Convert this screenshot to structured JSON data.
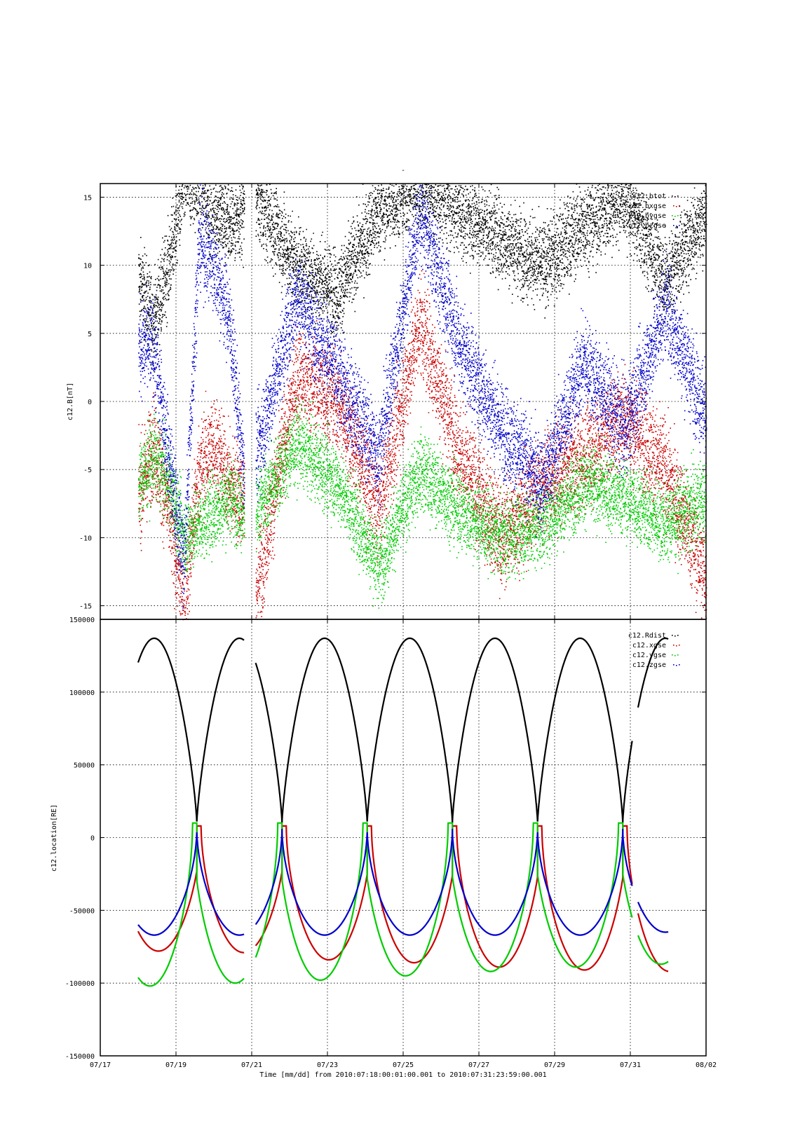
{
  "figure": {
    "top_marker": "-",
    "xlabel": "Time [mm/dd]  from 2010:07:18:00:01:00.001  to  2010:07:31:23:59:00.001",
    "x_tick_labels": [
      "07/17",
      "07/19",
      "07/21",
      "07/23",
      "07/25",
      "07/27",
      "07/29",
      "07/31",
      "08/02"
    ]
  },
  "chart_data": [
    {
      "type": "scatter",
      "ylabel": "c12.B[nT]",
      "xlim_days": [
        0,
        16
      ],
      "x_origin_date": "07/17",
      "ylim": [
        -16,
        16
      ],
      "y_ticks": [
        15,
        10,
        5,
        0,
        -5,
        -10,
        -15
      ],
      "grid": true,
      "legend": "top-right",
      "series": [
        {
          "name": "c12.btot",
          "color": "#000000",
          "note": "dense noisy scatter"
        },
        {
          "name": "c12.bxgse",
          "color": "#cc0000"
        },
        {
          "name": "c12.bygse",
          "color": "#00cc00"
        },
        {
          "name": "c12.bzgse",
          "color": "#0000cc"
        }
      ],
      "segments": [
        {
          "start": 1.0,
          "end": 3.8,
          "btot": [
            9,
            6,
            10,
            16,
            16,
            14,
            13,
            14
          ],
          "bx": [
            -7,
            -3,
            -8,
            -15,
            -5,
            -3,
            -6,
            -7
          ],
          "by": [
            -6,
            -4,
            -6,
            -10,
            -9,
            -8,
            -7,
            -8
          ],
          "bz": [
            4,
            4,
            -4,
            -12,
            12,
            10,
            6,
            -6
          ]
        },
        {
          "start": 4.1,
          "end": 16.0,
          "btot": [
            15,
            10,
            8,
            14,
            16,
            14,
            12,
            10,
            13,
            15,
            9,
            14
          ],
          "bx": [
            -14,
            2,
            0,
            -8,
            6,
            -4,
            -10,
            -6,
            -4,
            -1,
            -5,
            -13
          ],
          "by": [
            -8,
            -3,
            -6,
            -12,
            -5,
            -8,
            -10,
            -9,
            -6,
            -7,
            -9,
            -7
          ],
          "bz": [
            -4,
            8,
            2,
            -4,
            14,
            4,
            -2,
            -6,
            3,
            -2,
            7,
            -1
          ]
        }
      ]
    },
    {
      "type": "line",
      "ylabel": "c12.location[RE]",
      "xlim_days": [
        0,
        16
      ],
      "x_origin_date": "07/17",
      "ylim": [
        -150000,
        150000
      ],
      "y_ticks": [
        150000,
        100000,
        50000,
        0,
        -50000,
        -100000,
        -150000
      ],
      "grid": true,
      "legend": "top-right",
      "series": [
        {
          "name": "c12.Rdist",
          "color": "#000000"
        },
        {
          "name": "c12.xgse",
          "color": "#cc0000"
        },
        {
          "name": "c12.ygse",
          "color": "#00cc00"
        },
        {
          "name": "c12.zgse",
          "color": "#0000cc"
        }
      ],
      "orbit": {
        "perigee_days": [
          2.55,
          4.8,
          7.05,
          9.3,
          11.55,
          13.8
        ],
        "period_days": 2.25,
        "apogee_Rdist": 137000,
        "perigee_Rdist": 10000,
        "data_start_day": 1.0,
        "data_end_day": 15.0,
        "gaps": [
          [
            3.8,
            4.1
          ],
          [
            14.05,
            14.2
          ]
        ],
        "xgse_min": [
          -78000,
          -79000,
          -84000,
          -86000,
          -89000,
          -91000,
          -92000
        ],
        "ygse_min": [
          -102000,
          -100000,
          -98000,
          -95000,
          -92000,
          -89000,
          -87000
        ],
        "zgse_min": [
          -67000,
          -67000,
          -67000,
          -67000,
          -67000,
          -67000,
          -65000
        ]
      }
    }
  ]
}
